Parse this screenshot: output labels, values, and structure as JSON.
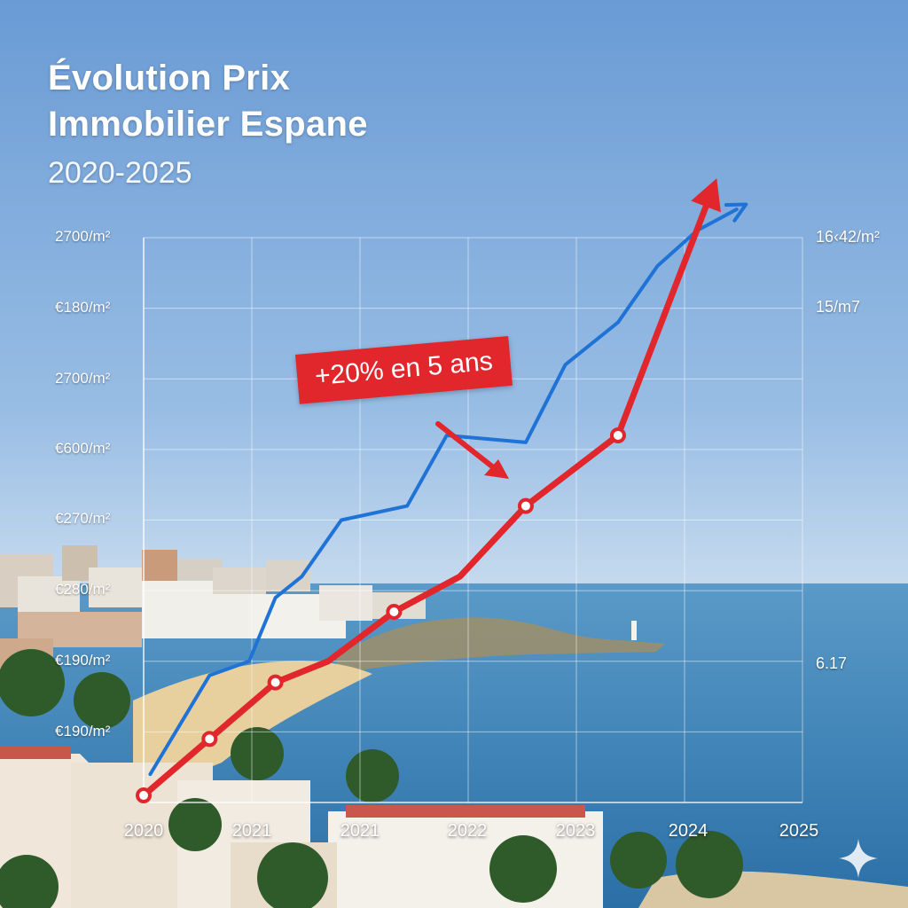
{
  "title_line1": "Évolution Prix",
  "title_line2": "Immobilier Espane",
  "subtitle": "2020-2025",
  "callout": "+20% en 5 ans",
  "colors": {
    "red": "#e1262c",
    "blue": "#1f73d6",
    "sky_top": "#6f9ed6",
    "sea": "#2f78ad"
  },
  "chart_data": {
    "type": "line",
    "title": "Évolution Prix Immobilier Espane",
    "subtitle": "2020-2025",
    "xlabel": "",
    "ylabel": "",
    "x_tick_labels": [
      "2020",
      "2021",
      "2021",
      "2022",
      "2023",
      "2024",
      "2025"
    ],
    "y_tick_labels_left": [
      "2700/m²",
      "€180/m²",
      "2700/m²",
      "€600/m²",
      "€270/m²",
      "€280/m²",
      "€190/m²",
      "€190/m²"
    ],
    "y_tick_labels_right": [
      "16‹42/m²",
      "15/m7",
      "6.17"
    ],
    "ylim": [
      0,
      8
    ],
    "grid": true,
    "annotation": "+20% en 5 ans",
    "series": [
      {
        "color": "#e1262c",
        "markers": true,
        "x": [
          2020.0,
          2020.5,
          2021.0,
          2021.4,
          2021.9,
          2022.4,
          2022.9,
          2023.6,
          2024.3
        ],
        "values": [
          0.1,
          0.9,
          1.7,
          2.0,
          2.7,
          3.2,
          4.2,
          5.2,
          8.6
        ],
        "marker_x": [
          2020.0,
          2020.5,
          2021.0,
          2021.9,
          2022.9,
          2023.6
        ],
        "marker_values": [
          0.1,
          0.9,
          1.7,
          2.7,
          4.2,
          5.2
        ]
      },
      {
        "color": "#1f73d6",
        "markers": false,
        "x": [
          2020.05,
          2020.5,
          2020.8,
          2021.0,
          2021.2,
          2021.5,
          2022.0,
          2022.3,
          2022.9,
          2023.2,
          2023.6,
          2023.9,
          2024.2,
          2024.5
        ],
        "values": [
          0.4,
          1.8,
          2.0,
          2.9,
          3.2,
          4.0,
          4.2,
          5.2,
          5.1,
          6.2,
          6.8,
          7.6,
          8.1,
          8.4
        ]
      }
    ]
  }
}
